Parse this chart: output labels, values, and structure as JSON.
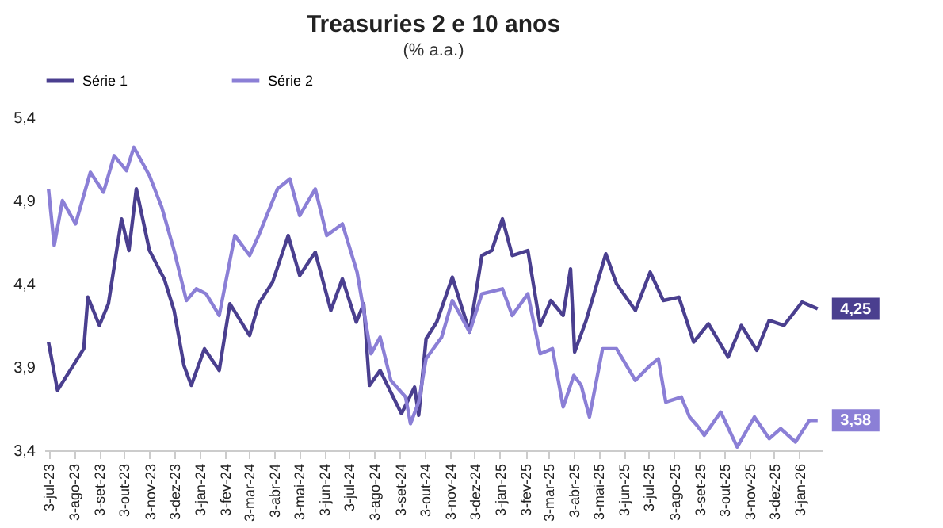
{
  "chart_data": {
    "type": "line",
    "title": "Treasuries 2 e 10 anos",
    "subtitle": "(% a.a.)",
    "series": [
      {
        "name": "Série 1",
        "color": "#4a3f8f",
        "x": [
          "2023-07-03",
          "2023-07-14",
          "2023-08-15",
          "2023-08-20",
          "2023-09-03",
          "2023-09-14",
          "2023-09-30",
          "2023-10-09",
          "2023-10-18",
          "2023-11-03",
          "2023-11-21",
          "2023-12-03",
          "2023-12-15",
          "2023-12-24",
          "2024-01-09",
          "2024-01-27",
          "2024-02-09",
          "2024-03-04",
          "2024-03-15",
          "2024-04-01",
          "2024-04-20",
          "2024-05-04",
          "2024-05-23",
          "2024-06-11",
          "2024-06-25",
          "2024-07-12",
          "2024-07-21",
          "2024-07-28",
          "2024-08-10",
          "2024-09-05",
          "2024-09-21",
          "2024-09-26",
          "2024-10-05",
          "2024-10-18",
          "2024-11-06",
          "2024-11-27",
          "2024-12-12",
          "2024-12-24",
          "2025-01-06",
          "2025-01-18",
          "2025-02-06",
          "2025-02-21",
          "2025-03-06",
          "2025-03-21",
          "2025-03-30",
          "2025-04-04",
          "2025-04-18",
          "2025-05-12",
          "2025-05-25",
          "2025-06-17",
          "2025-07-05",
          "2025-07-21",
          "2025-08-09",
          "2025-08-27",
          "2025-09-14",
          "2025-10-08",
          "2025-10-24",
          "2025-11-12",
          "2025-11-27",
          "2025-12-15",
          "2026-01-06",
          "2026-01-25"
        ],
        "values": [
          4.05,
          3.76,
          4.01,
          4.32,
          4.15,
          4.28,
          4.79,
          4.6,
          4.97,
          4.6,
          4.43,
          4.24,
          3.91,
          3.79,
          4.01,
          3.88,
          4.28,
          4.09,
          4.28,
          4.41,
          4.69,
          4.45,
          4.59,
          4.24,
          4.43,
          4.17,
          4.28,
          3.79,
          3.88,
          3.62,
          3.78,
          3.61,
          4.07,
          4.17,
          4.44,
          4.11,
          4.57,
          4.6,
          4.79,
          4.57,
          4.6,
          4.15,
          4.3,
          4.21,
          4.49,
          3.99,
          4.18,
          4.58,
          4.4,
          4.24,
          4.47,
          4.3,
          4.32,
          4.05,
          4.16,
          3.96,
          4.15,
          4.0,
          4.18,
          4.15,
          4.29,
          4.25
        ]
      },
      {
        "name": "Série 2",
        "color": "#8b7fd6",
        "x": [
          "2023-07-03",
          "2023-07-10",
          "2023-07-20",
          "2023-08-05",
          "2023-08-23",
          "2023-09-08",
          "2023-09-21",
          "2023-10-06",
          "2023-10-15",
          "2023-11-03",
          "2023-11-18",
          "2023-12-03",
          "2023-12-18",
          "2023-12-30",
          "2024-01-11",
          "2024-01-27",
          "2024-02-15",
          "2024-03-04",
          "2024-03-15",
          "2024-04-07",
          "2024-04-22",
          "2024-05-04",
          "2024-05-23",
          "2024-06-06",
          "2024-06-25",
          "2024-07-13",
          "2024-07-30",
          "2024-08-10",
          "2024-08-23",
          "2024-09-10",
          "2024-09-16",
          "2024-09-26",
          "2024-10-05",
          "2024-10-24",
          "2024-11-06",
          "2024-11-27",
          "2024-12-12",
          "2025-01-06",
          "2025-01-18",
          "2025-02-06",
          "2025-02-21",
          "2025-03-08",
          "2025-03-21",
          "2025-04-03",
          "2025-04-12",
          "2025-04-22",
          "2025-05-08",
          "2025-05-25",
          "2025-06-17",
          "2025-07-05",
          "2025-07-15",
          "2025-07-24",
          "2025-08-12",
          "2025-08-22",
          "2025-08-31",
          "2025-09-09",
          "2025-09-29",
          "2025-10-19",
          "2025-11-09",
          "2025-11-27",
          "2025-12-11",
          "2025-12-29",
          "2026-01-15",
          "2026-01-25"
        ],
        "values": [
          4.97,
          4.63,
          4.9,
          4.76,
          5.07,
          4.95,
          5.17,
          5.08,
          5.22,
          5.05,
          4.86,
          4.6,
          4.3,
          4.37,
          4.34,
          4.21,
          4.69,
          4.57,
          4.69,
          4.97,
          5.03,
          4.81,
          4.97,
          4.69,
          4.76,
          4.47,
          3.98,
          4.08,
          3.82,
          3.72,
          3.56,
          3.69,
          3.95,
          4.08,
          4.3,
          4.11,
          4.34,
          4.37,
          4.21,
          4.34,
          3.98,
          4.01,
          3.66,
          3.85,
          3.79,
          3.6,
          4.01,
          4.01,
          3.82,
          3.91,
          3.95,
          3.69,
          3.72,
          3.6,
          3.55,
          3.49,
          3.63,
          3.42,
          3.6,
          3.47,
          3.53,
          3.45,
          3.58,
          3.58
        ]
      }
    ],
    "ylim": [
      3.4,
      5.4
    ],
    "yticks": [
      {
        "value": 3.4,
        "label": "3,4"
      },
      {
        "value": 3.9,
        "label": "3,9"
      },
      {
        "value": 4.4,
        "label": "4,4"
      },
      {
        "value": 4.9,
        "label": "4,9"
      },
      {
        "value": 5.4,
        "label": "5,4"
      }
    ],
    "xlim": [
      "2023-06-28",
      "2026-01-31"
    ],
    "xticks": [
      {
        "value": "2023-07-03",
        "label": "3-jul-23"
      },
      {
        "value": "2023-08-03",
        "label": "3-ago-23"
      },
      {
        "value": "2023-09-03",
        "label": "3-set-23"
      },
      {
        "value": "2023-10-03",
        "label": "3-out-23"
      },
      {
        "value": "2023-11-03",
        "label": "3-nov-23"
      },
      {
        "value": "2023-12-03",
        "label": "3-dez-23"
      },
      {
        "value": "2024-01-03",
        "label": "3-jan-24"
      },
      {
        "value": "2024-02-03",
        "label": "3-fev-24"
      },
      {
        "value": "2024-03-03",
        "label": "3-mar-24"
      },
      {
        "value": "2024-04-03",
        "label": "3-abr-24"
      },
      {
        "value": "2024-05-03",
        "label": "3-mai-24"
      },
      {
        "value": "2024-06-03",
        "label": "3-jun-24"
      },
      {
        "value": "2024-07-03",
        "label": "3-jul-24"
      },
      {
        "value": "2024-08-03",
        "label": "3-ago-24"
      },
      {
        "value": "2024-09-03",
        "label": "3-set-24"
      },
      {
        "value": "2024-10-03",
        "label": "3-out-24"
      },
      {
        "value": "2024-11-03",
        "label": "3-nov-24"
      },
      {
        "value": "2024-12-03",
        "label": "3-dez-24"
      },
      {
        "value": "2025-01-03",
        "label": "3-jan-25"
      },
      {
        "value": "2025-02-03",
        "label": "3-fev-25"
      },
      {
        "value": "2025-03-03",
        "label": "3-mar-25"
      },
      {
        "value": "2025-04-03",
        "label": "3-abr-25"
      },
      {
        "value": "2025-05-03",
        "label": "3-mai-25"
      },
      {
        "value": "2025-06-03",
        "label": "3-jun-25"
      },
      {
        "value": "2025-07-03",
        "label": "3-jul-25"
      },
      {
        "value": "2025-08-03",
        "label": "3-ago-25"
      },
      {
        "value": "2025-09-03",
        "label": "3-set-25"
      },
      {
        "value": "2025-10-03",
        "label": "3-out-25"
      },
      {
        "value": "2025-11-03",
        "label": "3-nov-25"
      },
      {
        "value": "2025-12-03",
        "label": "3-dez-25"
      },
      {
        "value": "2026-01-03",
        "label": "3-jan-26"
      }
    ],
    "annotations": [
      {
        "text": "4,25",
        "x": "2026-01-25",
        "y": 4.25
      },
      {
        "text": "3,58",
        "x": "2026-01-25",
        "y": 3.58
      }
    ],
    "legend": "top",
    "grid": false,
    "marker": "none",
    "line_style": "solid"
  }
}
